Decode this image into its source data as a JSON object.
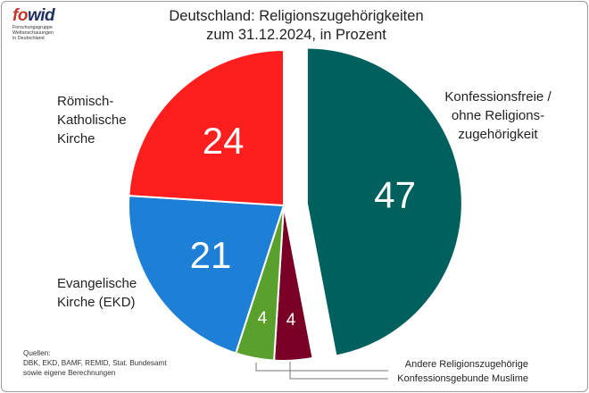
{
  "logo": {
    "word_a": "fo",
    "word_b": "wid",
    "subtitle_lines": [
      "Forschungsgruppe",
      "Weltanschauungen",
      "in Deutschland"
    ]
  },
  "title_lines": [
    "Deutschland: Religionszugehörigkeiten",
    "zum 31.12.2024, in Prozent"
  ],
  "sources_lines": [
    "Quellen:",
    "DBK, EKD, BAMF, REMID, Stat. Bundesamt",
    "sowie eigene Berechnungen"
  ],
  "chart_data": {
    "type": "pie",
    "title": "Deutschland: Religionszugehörigkeiten zum 31.12.2024, in Prozent",
    "slices": [
      {
        "label": "Konfessionsfreie / ohne Religions- zugehörigkeit",
        "value": 47,
        "color": "#00605e",
        "exploded": true
      },
      {
        "label": "Konfessionsgebunde Muslime",
        "value": 4,
        "color": "#7b0026",
        "exploded": false
      },
      {
        "label": "Andere Religionszugehörige",
        "value": 4,
        "color": "#5aa02c",
        "exploded": false
      },
      {
        "label": "Evangelische Kirche (EKD)",
        "value": 21,
        "color": "#1e7fd6",
        "exploded": false
      },
      {
        "label": "Römisch- Katholische Kirche",
        "value": 24,
        "color": "#ff1e1e",
        "exploded": false
      }
    ]
  },
  "labels": {
    "konfessionsfrei": [
      "Konfessionsfreie /",
      "ohne Religions-",
      "zugehörigkeit"
    ],
    "katholisch": [
      "Römisch-",
      "Katholische",
      "Kirche"
    ],
    "evangelisch": [
      "Evangelische",
      "Kirche (EKD)"
    ],
    "andere": "Andere Religionszugehörige",
    "muslime": "Konfessionsgebunde Muslime"
  }
}
